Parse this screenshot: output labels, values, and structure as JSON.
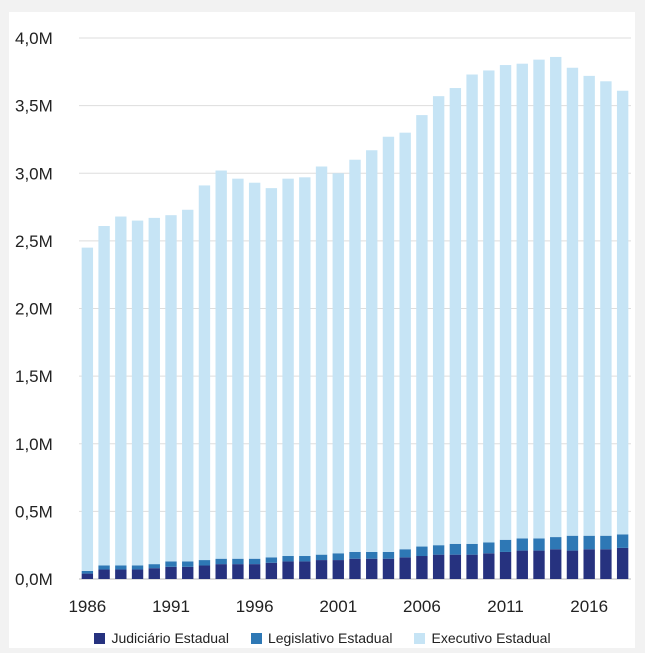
{
  "chart_data": {
    "type": "bar",
    "stacked": true,
    "categories": [
      "1986",
      "1987",
      "1988",
      "1989",
      "1990",
      "1991",
      "1992",
      "1993",
      "1994",
      "1995",
      "1996",
      "1997",
      "1998",
      "1999",
      "2000",
      "2001",
      "2002",
      "2003",
      "2004",
      "2005",
      "2006",
      "2007",
      "2008",
      "2009",
      "2010",
      "2011",
      "2012",
      "2013",
      "2014",
      "2015",
      "2016",
      "2017",
      "2018"
    ],
    "x_tick_labels": [
      "1986",
      "1991",
      "1996",
      "2001",
      "2006",
      "2011",
      "2016"
    ],
    "y_tick_labels": [
      "0,0M",
      "0,5M",
      "1,0M",
      "1,5M",
      "2,0M",
      "2,5M",
      "3,0M",
      "3,5M",
      "4,0M"
    ],
    "ylim": [
      0,
      4.0
    ],
    "unit": "M",
    "grid": true,
    "legend_position": "bottom",
    "series": [
      {
        "name": "Judiciário Estadual",
        "color": "#26327f",
        "values": [
          0.04,
          0.07,
          0.07,
          0.07,
          0.08,
          0.09,
          0.09,
          0.1,
          0.11,
          0.11,
          0.11,
          0.12,
          0.13,
          0.13,
          0.14,
          0.14,
          0.15,
          0.15,
          0.15,
          0.16,
          0.17,
          0.18,
          0.18,
          0.18,
          0.19,
          0.2,
          0.21,
          0.21,
          0.22,
          0.21,
          0.22,
          0.22,
          0.23
        ]
      },
      {
        "name": "Legislativo Estadual",
        "color": "#2e78b5",
        "values": [
          0.02,
          0.03,
          0.03,
          0.03,
          0.03,
          0.04,
          0.04,
          0.04,
          0.04,
          0.04,
          0.04,
          0.04,
          0.04,
          0.04,
          0.04,
          0.05,
          0.05,
          0.05,
          0.05,
          0.06,
          0.07,
          0.07,
          0.08,
          0.08,
          0.08,
          0.09,
          0.09,
          0.09,
          0.09,
          0.11,
          0.1,
          0.1,
          0.1
        ]
      },
      {
        "name": "Executivo Estadual",
        "color": "#c6e4f5",
        "values": [
          2.39,
          2.51,
          2.58,
          2.55,
          2.56,
          2.56,
          2.6,
          2.77,
          2.87,
          2.81,
          2.78,
          2.73,
          2.79,
          2.8,
          2.87,
          2.81,
          2.9,
          2.97,
          3.07,
          3.08,
          3.19,
          3.32,
          3.37,
          3.47,
          3.49,
          3.51,
          3.51,
          3.54,
          3.55,
          3.46,
          3.4,
          3.36,
          3.28
        ]
      }
    ]
  }
}
